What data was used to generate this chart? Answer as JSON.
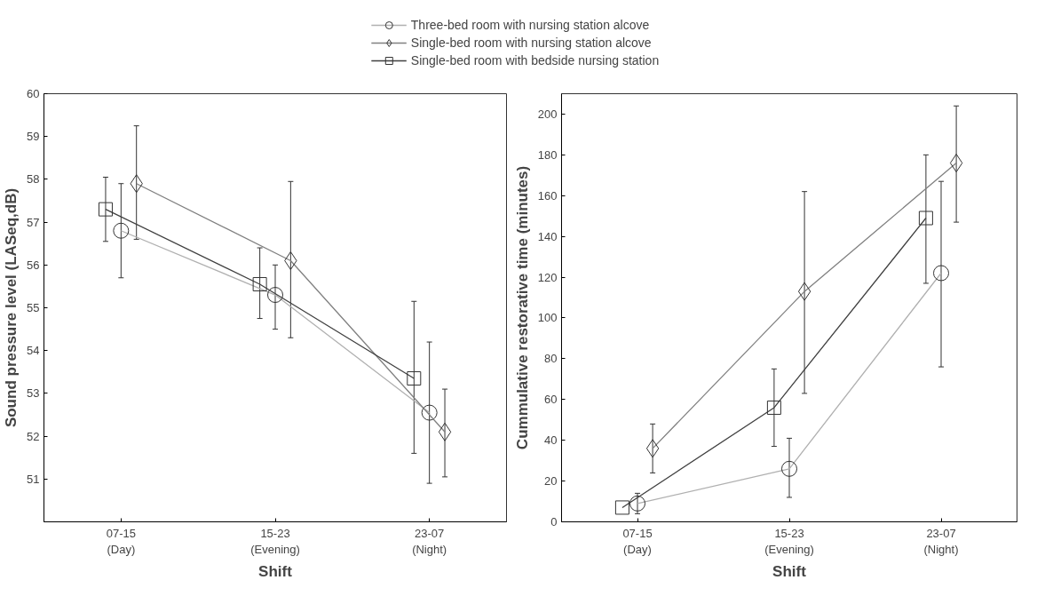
{
  "chart_data": [
    {
      "type": "line",
      "xlabel": "Shift",
      "ylabel": "Sound pressure level (LASeq,dB)",
      "ylim": [
        50,
        60
      ],
      "categories": [
        "07-15\n(Day)",
        "15-23\n(Evening)",
        "23-07\n(Night)"
      ],
      "yticks": [
        51,
        52,
        53,
        54,
        55,
        56,
        57,
        58,
        59,
        60
      ],
      "grid": false,
      "legend": "top",
      "series": [
        {
          "name": "Three-bed room with nursing station alcove",
          "color": "#b0b0b0",
          "marker": "circle",
          "values": [
            56.8,
            55.3,
            52.55
          ],
          "errors": [
            [
              55.7,
              57.9
            ],
            [
              54.5,
              56.0
            ],
            [
              50.9,
              54.2
            ]
          ]
        },
        {
          "name": "Single-bed room with nursing station alcove",
          "color": "#808080",
          "marker": "diamond",
          "values": [
            57.9,
            56.1,
            52.1
          ],
          "errors": [
            [
              56.6,
              59.25
            ],
            [
              54.3,
              57.95
            ],
            [
              51.05,
              53.1
            ]
          ]
        },
        {
          "name": "Single-bed room with bedside nursing station",
          "color": "#404040",
          "marker": "square",
          "values": [
            57.3,
            55.55,
            53.35
          ],
          "errors": [
            [
              56.55,
              58.05
            ],
            [
              54.75,
              56.4
            ],
            [
              51.6,
              55.15
            ]
          ]
        }
      ]
    },
    {
      "type": "line",
      "xlabel": "Shift",
      "ylabel": "Cummulative restorative time (minutes)",
      "ylim": [
        0,
        210
      ],
      "categories": [
        "07-15\n(Day)",
        "15-23\n(Evening)",
        "23-07\n(Night)"
      ],
      "yticks": [
        0,
        20,
        40,
        60,
        80,
        100,
        120,
        140,
        160,
        180,
        200
      ],
      "grid": false,
      "series": [
        {
          "color": "#b0b0b0",
          "marker": "circle",
          "values": [
            9,
            26,
            122
          ],
          "errors": [
            [
              4,
              14
            ],
            [
              12,
              41
            ],
            [
              76,
              167
            ]
          ]
        },
        {
          "color": "#808080",
          "marker": "diamond",
          "values": [
            36,
            113,
            176
          ],
          "errors": [
            [
              24,
              48
            ],
            [
              63,
              162
            ],
            [
              147,
              204
            ]
          ]
        },
        {
          "color": "#404040",
          "marker": "square",
          "values": [
            7,
            56,
            149
          ],
          "errors": [
            null,
            [
              37,
              75
            ],
            [
              117,
              180
            ]
          ]
        }
      ]
    }
  ]
}
